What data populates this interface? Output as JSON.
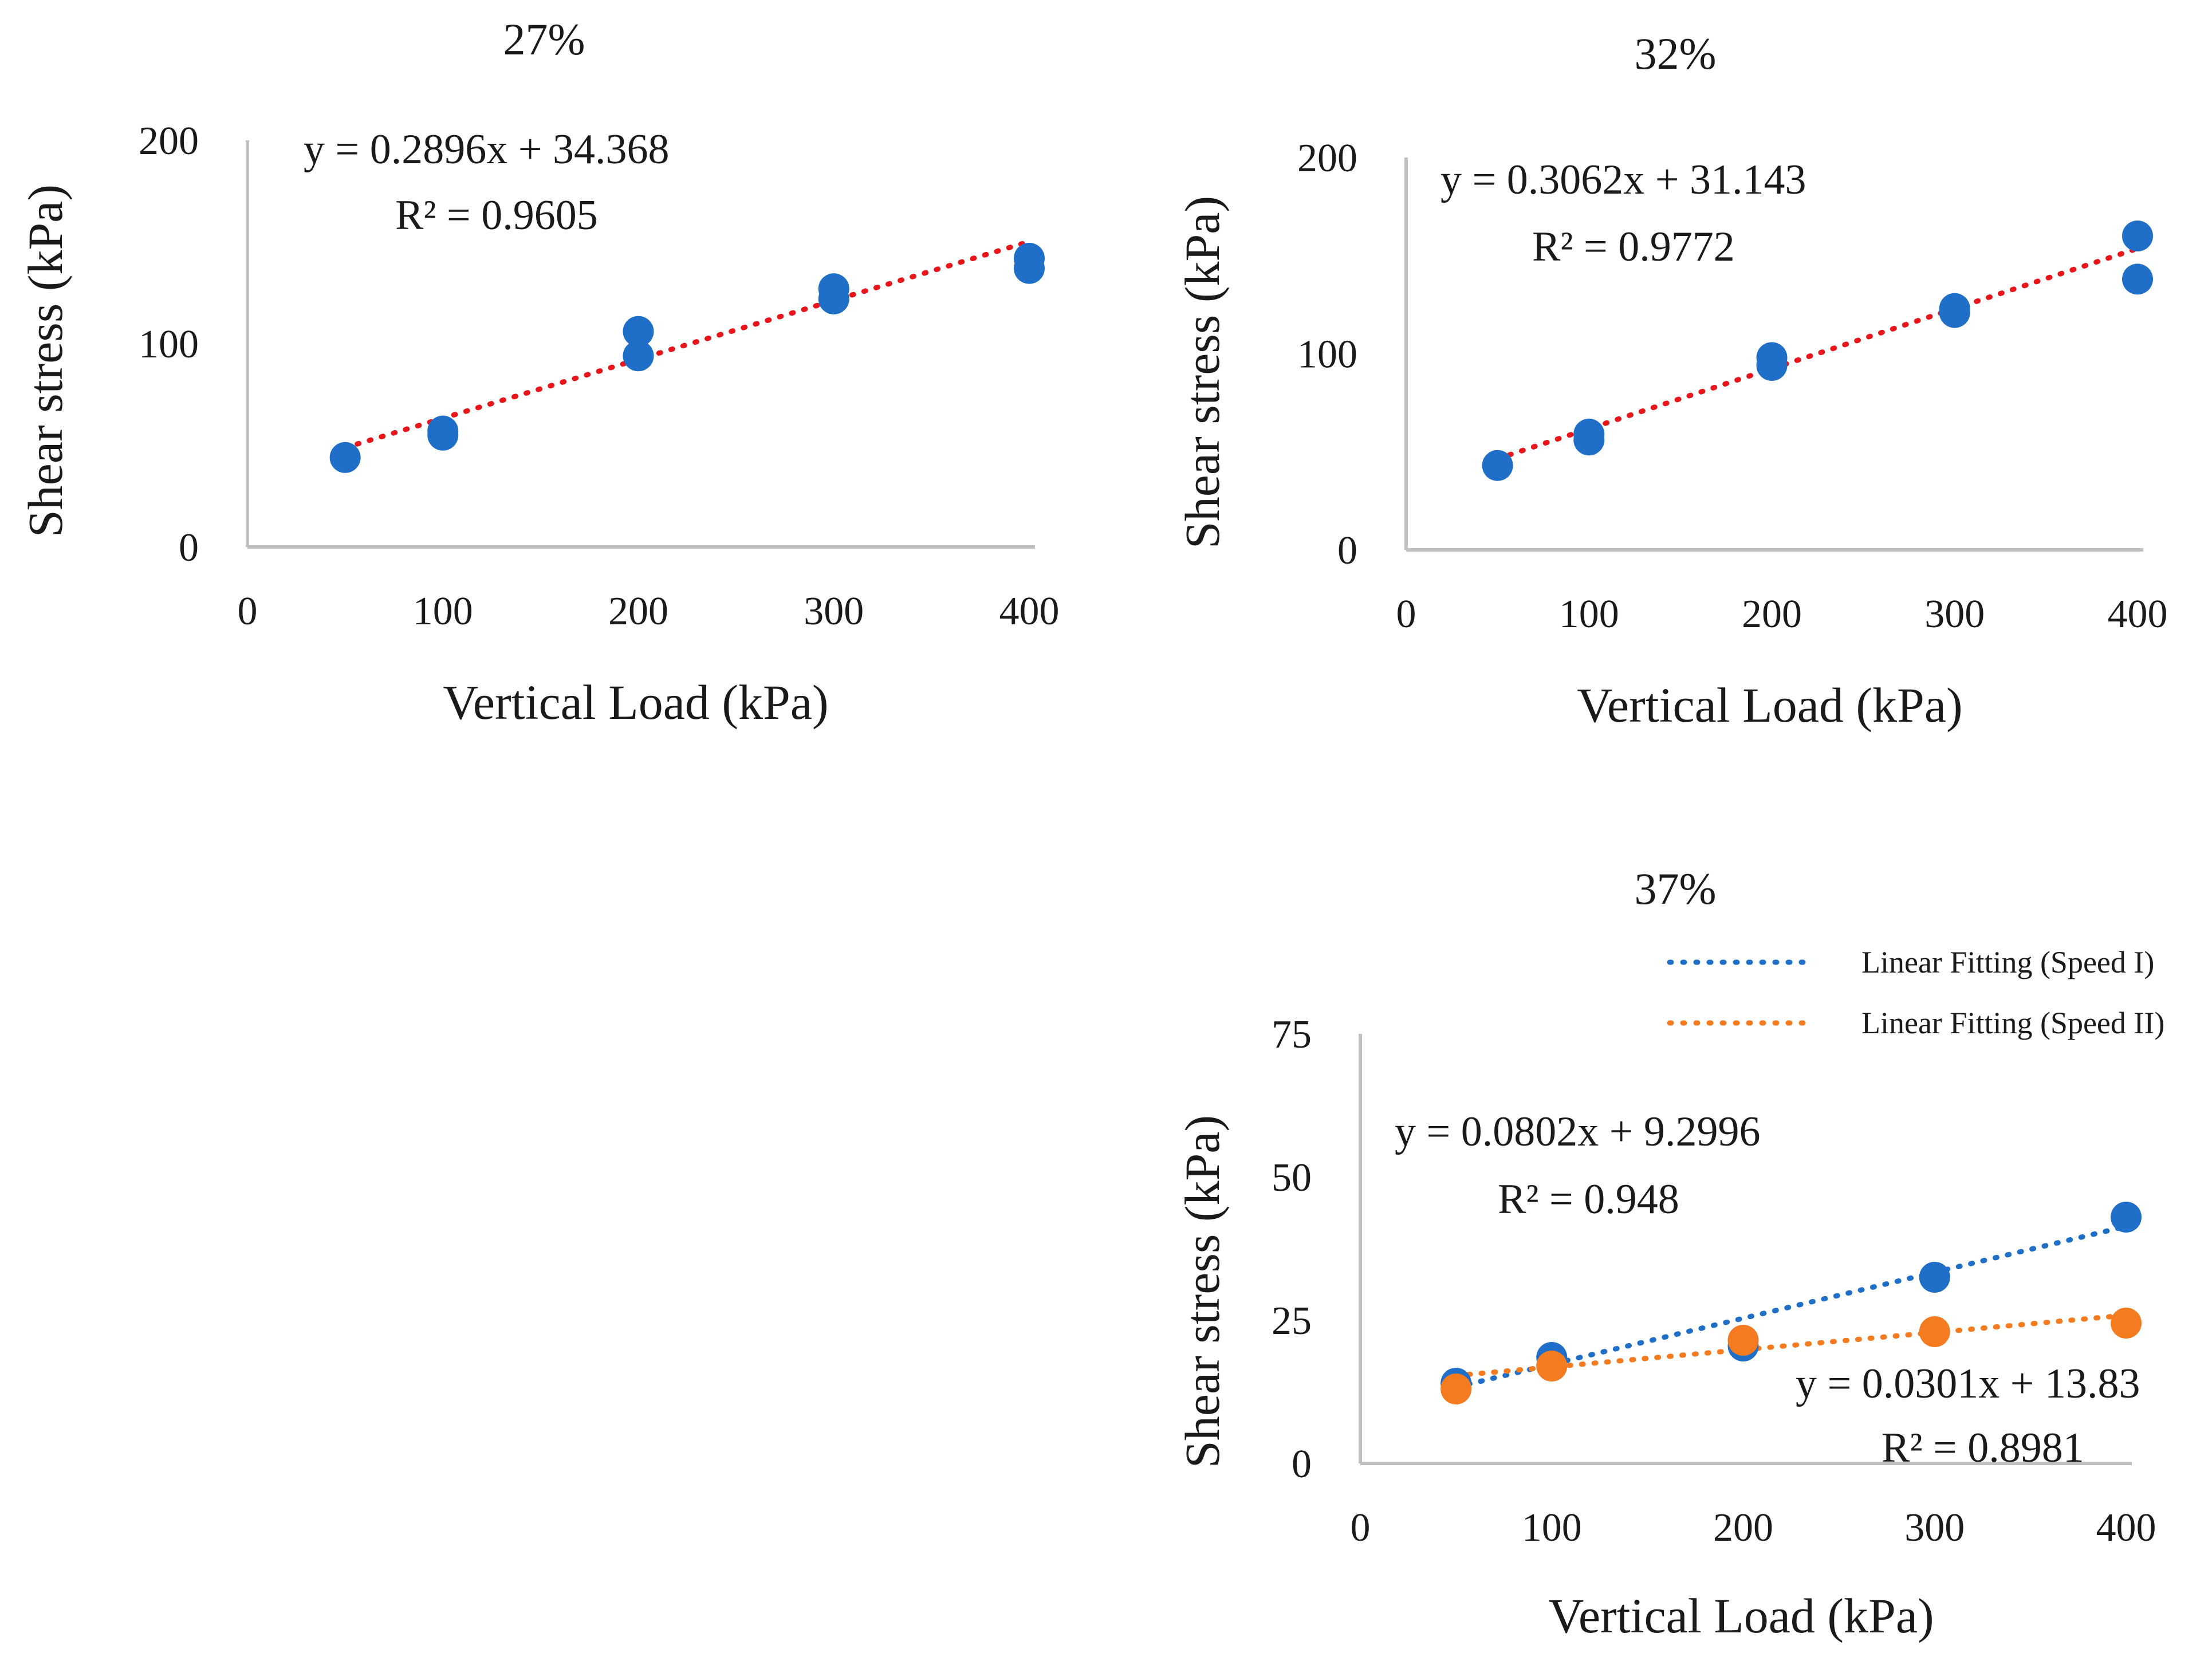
{
  "colors": {
    "speed_I": "#1f6fc8",
    "speed_II": "#f47b20",
    "trend_single": "#e8161b",
    "axis": "#bfbfbf"
  },
  "legend": {
    "items": [
      {
        "label": "Linear Fitting (Speed I)",
        "color": "#1f6fc8"
      },
      {
        "label": "Linear Fitting (Speed II)",
        "color": "#f47b20"
      }
    ]
  },
  "chart_data": [
    {
      "type": "scatter",
      "title": "27%",
      "xlabel": "Vertical Load  (kPa)",
      "ylabel": "Shear stress (kPa)",
      "xlim": [
        0,
        400
      ],
      "ylim": [
        0,
        200
      ],
      "xticks": [
        "0",
        "100",
        "200",
        "300",
        "400"
      ],
      "yticks": [
        "0",
        "100",
        "200"
      ],
      "grid": false,
      "series": [
        {
          "color": "#1f6fc8",
          "points": [
            [
              50,
              44
            ],
            [
              100,
              55
            ],
            [
              100,
              57
            ],
            [
              200,
              94
            ],
            [
              200,
              106
            ],
            [
              300,
              122
            ],
            [
              300,
              127
            ],
            [
              400,
              137
            ],
            [
              400,
              142
            ]
          ],
          "trend": {
            "slope": 0.2896,
            "intercept": 34.368,
            "color": "#e8161b",
            "x_range": [
              50,
              400
            ]
          }
        }
      ],
      "annotations": [
        {
          "line1": "y = 0.2896x + 34.368",
          "line2": "R² = 0.9605"
        }
      ]
    },
    {
      "type": "scatter",
      "title": "32%",
      "xlabel": "Vertical Load  (kPa)",
      "ylabel": "Shear stress (kPa)",
      "xlim": [
        0,
        400
      ],
      "ylim": [
        0,
        200
      ],
      "xticks": [
        "0",
        "100",
        "200",
        "300",
        "400"
      ],
      "yticks": [
        "0",
        "100",
        "200"
      ],
      "grid": false,
      "series": [
        {
          "color": "#1f6fc8",
          "points": [
            [
              50,
              43
            ],
            [
              100,
              56
            ],
            [
              100,
              59
            ],
            [
              200,
              94
            ],
            [
              200,
              98
            ],
            [
              300,
              121
            ],
            [
              300,
              123
            ],
            [
              400,
              138
            ],
            [
              400,
              160
            ]
          ],
          "trend": {
            "slope": 0.3062,
            "intercept": 31.143,
            "color": "#e8161b",
            "x_range": [
              50,
              400
            ]
          }
        }
      ],
      "annotations": [
        {
          "line1": "y = 0.3062x + 31.143",
          "line2": "R² = 0.9772"
        }
      ]
    },
    {
      "type": "scatter",
      "title": "37%",
      "xlabel": "Vertical Load (kPa)",
      "ylabel": "Shear stress (kPa)",
      "xlim": [
        0,
        400
      ],
      "ylim": [
        0,
        75
      ],
      "xticks": [
        "0",
        "100",
        "200",
        "300",
        "400"
      ],
      "yticks": [
        "0",
        "25",
        "50",
        "75"
      ],
      "grid": false,
      "legend_position": "top-right",
      "series": [
        {
          "name": "Linear Fitting (Speed I)",
          "color": "#1f6fc8",
          "points": [
            [
              50,
              14
            ],
            [
              100,
              18.5
            ],
            [
              200,
              20.5
            ],
            [
              300,
              32.5
            ],
            [
              400,
              43
            ]
          ],
          "trend": {
            "slope": 0.0802,
            "intercept": 9.2996,
            "color": "#1f6fc8",
            "x_range": [
              50,
              400
            ]
          }
        },
        {
          "name": "Linear Fitting (Speed II)",
          "color": "#f47b20",
          "points": [
            [
              50,
              13
            ],
            [
              100,
              17
            ],
            [
              200,
              21.5
            ],
            [
              300,
              23
            ],
            [
              400,
              24.5
            ]
          ],
          "trend": {
            "slope": 0.0301,
            "intercept": 13.83,
            "color": "#f47b20",
            "x_range": [
              50,
              400
            ]
          }
        }
      ],
      "annotations": [
        {
          "line1": "y = 0.0802x + 9.2996",
          "line2": "R² = 0.948"
        },
        {
          "line1": "y = 0.0301x + 13.83",
          "line2": "R² = 0.8981"
        }
      ]
    }
  ]
}
